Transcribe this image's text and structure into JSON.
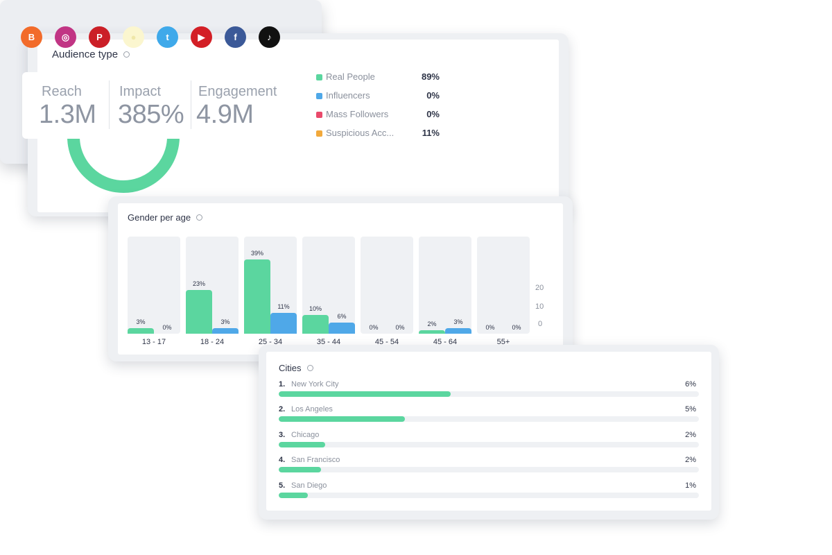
{
  "audience": {
    "title": "Audience type",
    "items": [
      {
        "label": "Real People",
        "value": "89%",
        "percent": 89,
        "color": "#5bd69f"
      },
      {
        "label": "Influencers",
        "value": "0%",
        "percent": 0,
        "color": "#4fa8e8"
      },
      {
        "label": "Mass Followers",
        "value": "0%",
        "percent": 0,
        "color": "#e94a6b"
      },
      {
        "label": "Suspicious Acc...",
        "value": "11%",
        "percent": 11,
        "color": "#f2a93b"
      }
    ]
  },
  "gender": {
    "title": "Gender per age",
    "axis_ticks": [
      "20",
      "10",
      "0"
    ],
    "groups": [
      {
        "age": "13 - 17",
        "a": 3,
        "b": 0,
        "a_label": "3%",
        "b_label": "0%"
      },
      {
        "age": "18 - 24",
        "a": 23,
        "b": 3,
        "a_label": "23%",
        "b_label": "3%"
      },
      {
        "age": "25 - 34",
        "a": 39,
        "b": 11,
        "a_label": "39%",
        "b_label": "11%"
      },
      {
        "age": "35 - 44",
        "a": 10,
        "b": 6,
        "a_label": "10%",
        "b_label": "6%"
      },
      {
        "age": "45 - 54",
        "a": 0,
        "b": 0,
        "a_label": "0%",
        "b_label": "0%"
      },
      {
        "age": "45 - 64",
        "a": 2,
        "b": 3,
        "a_label": "2%",
        "b_label": "3%"
      },
      {
        "age": "55+",
        "a": 0,
        "b": 0,
        "a_label": "0%",
        "b_label": "0%"
      }
    ],
    "colors": {
      "a": "#5bd69f",
      "b": "#4fa8e8"
    }
  },
  "social": {
    "icons": [
      {
        "name": "blogger-icon",
        "glyph": "B",
        "color": "#f26b2a"
      },
      {
        "name": "instagram-icon",
        "glyph": "◎",
        "color": "#c13584"
      },
      {
        "name": "pinterest-icon",
        "glyph": "P",
        "color": "#cb1f27"
      },
      {
        "name": "snapchat-icon",
        "glyph": "●",
        "color": "#fbf6cf"
      },
      {
        "name": "twitter-icon",
        "glyph": "t",
        "color": "#3fa9ea"
      },
      {
        "name": "youtube-icon",
        "glyph": "▶",
        "color": "#d31f26"
      },
      {
        "name": "facebook-icon",
        "glyph": "f",
        "color": "#3b5998"
      },
      {
        "name": "tiktok-icon",
        "glyph": "♪",
        "color": "#111111"
      }
    ],
    "metrics": [
      {
        "label": "Reach",
        "value": "1.3M"
      },
      {
        "label": "Impact",
        "value": "385%"
      },
      {
        "label": "Engagement",
        "value": "4.9M"
      }
    ]
  },
  "cities": {
    "title": "Cities",
    "items": [
      {
        "rank": "1.",
        "name": "New York City",
        "value": "6%",
        "fill": 0.41
      },
      {
        "rank": "2.",
        "name": "Los Angeles",
        "value": "5%",
        "fill": 0.3
      },
      {
        "rank": "3.",
        "name": "Chicago",
        "value": "2%",
        "fill": 0.11
      },
      {
        "rank": "4.",
        "name": "San Francisco",
        "value": "2%",
        "fill": 0.1
      },
      {
        "rank": "5.",
        "name": "San Diego",
        "value": "1%",
        "fill": 0.07
      }
    ]
  }
}
